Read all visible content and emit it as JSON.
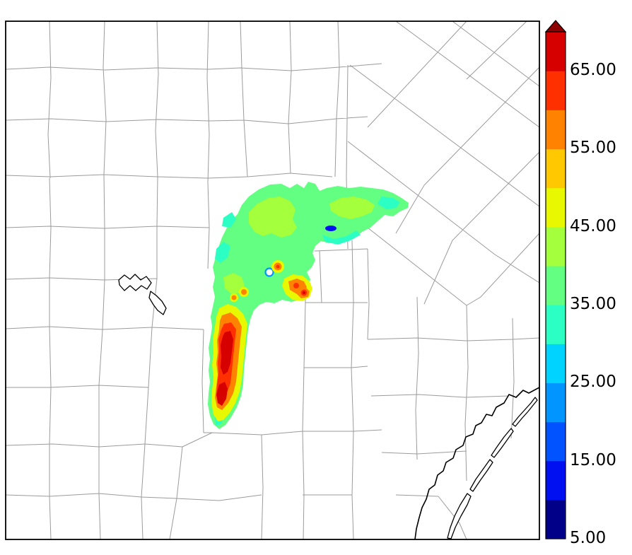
{
  "figure": {
    "background_color": "#ffffff",
    "border_color": "#000000"
  },
  "chart_data": {
    "type": "heatmap",
    "title": "",
    "description": "Filled-contour radar reflectivity field plotted over a county map with Gulf coastline, barrier islands and inland reservoirs; vertical colorbar at right",
    "value_range": [
      5,
      70
    ],
    "contour_interval": 5,
    "colorbar": {
      "orientation": "vertical",
      "position": "right",
      "levels": [
        5,
        10,
        15,
        20,
        25,
        30,
        35,
        40,
        45,
        50,
        55,
        60,
        65
      ],
      "tick_labels": [
        "65.00",
        "55.00",
        "45.00",
        "35.00",
        "25.00",
        "15.00",
        "5.00"
      ],
      "over_arrow": true
    },
    "palette": {
      "5": "#000089",
      "10": "#0010F0",
      "15": "#0053FF",
      "20": "#0095FF",
      "25": "#00D3FF",
      "30": "#2BFFC4",
      "35": "#62FF82",
      "40": "#A4FF3C",
      "45": "#E8F800",
      "50": "#FFC800",
      "55": "#FF8200",
      "60": "#FF3000",
      "65": "#D60000",
      "70": "#8C0000"
    },
    "map_layers": [
      "county-boundaries",
      "coastline",
      "barrier-islands",
      "lakes",
      "reflectivity-field"
    ]
  }
}
